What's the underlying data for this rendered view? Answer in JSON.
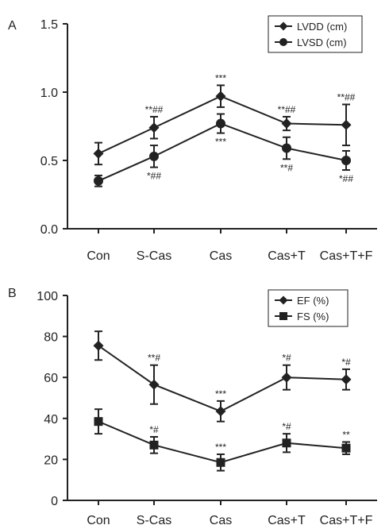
{
  "chart_data": [
    {
      "type": "line",
      "panel_label": "A",
      "categories": [
        "Con",
        "S-Cas",
        "Cas",
        "Cas+T",
        "Cas+T+F"
      ],
      "ylim": [
        0,
        1.5
      ],
      "yticks": [
        0.0,
        0.5,
        1.0,
        1.5
      ],
      "ytick_labels": [
        "0.0",
        "0.5",
        "1.0",
        "1.5"
      ],
      "legend_position": "top-right",
      "grid": false,
      "series": [
        {
          "name": "LVDD (cm)",
          "marker": "diamond",
          "values": [
            0.55,
            0.74,
            0.97,
            0.77,
            0.76
          ],
          "errors": [
            0.08,
            0.08,
            0.08,
            0.05,
            0.15
          ],
          "annotations": [
            "",
            "**##",
            "***",
            "**##",
            "**##"
          ],
          "annotation_side": "above"
        },
        {
          "name": "LVSD (cm)",
          "marker": "circle",
          "values": [
            0.35,
            0.53,
            0.77,
            0.59,
            0.5
          ],
          "errors": [
            0.04,
            0.08,
            0.07,
            0.08,
            0.07
          ],
          "annotations": [
            "",
            "*##",
            "***",
            "**#",
            "*##"
          ],
          "annotation_side": "below"
        }
      ]
    },
    {
      "type": "line",
      "panel_label": "B",
      "categories": [
        "Con",
        "S-Cas",
        "Cas",
        "Cas+T",
        "Cas+T+F"
      ],
      "ylim": [
        0,
        100
      ],
      "yticks": [
        0,
        20,
        40,
        60,
        80,
        100
      ],
      "ytick_labels": [
        "0",
        "20",
        "40",
        "60",
        "80",
        "100"
      ],
      "legend_position": "top-right",
      "grid": false,
      "series": [
        {
          "name": "EF (%)",
          "marker": "diamond",
          "values": [
            75.5,
            56.5,
            43.5,
            60,
            59
          ],
          "errors": [
            7,
            9.5,
            5,
            6,
            5
          ],
          "annotations": [
            "",
            "**#",
            "***",
            "*#",
            "*#"
          ],
          "annotation_side": "above"
        },
        {
          "name": "FS (%)",
          "marker": "square",
          "values": [
            38.5,
            27,
            18.5,
            28,
            25.5
          ],
          "errors": [
            6,
            4,
            4,
            4.5,
            3
          ],
          "annotations": [
            "",
            "*#",
            "***",
            "*#",
            "**"
          ],
          "annotation_side": "above"
        }
      ]
    }
  ]
}
